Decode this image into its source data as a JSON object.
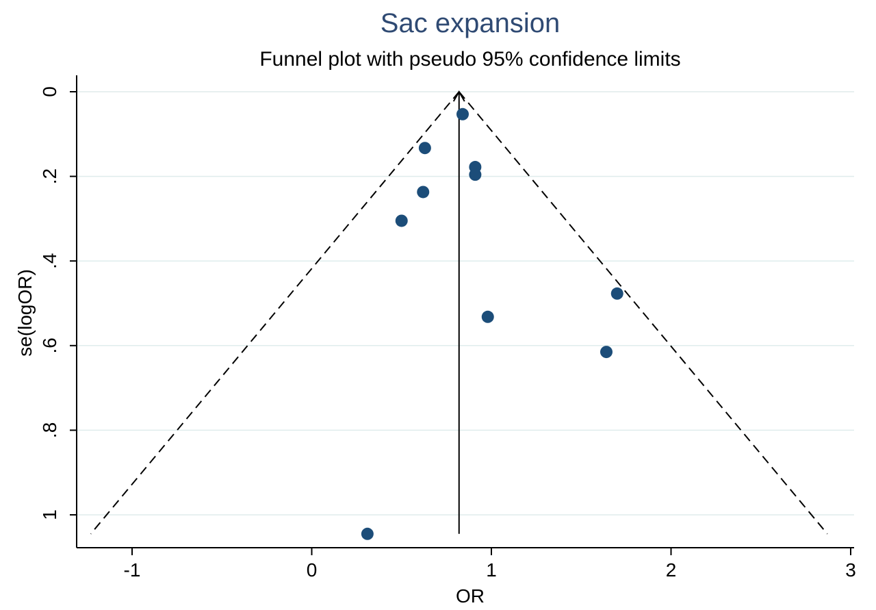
{
  "chart_data": {
    "type": "scatter",
    "title": "Sac expansion",
    "subtitle": "Funnel plot with pseudo 95% confidence limits",
    "xlabel": "OR",
    "ylabel": "se(logOR)",
    "xlim": [
      -1.3,
      3.0
    ],
    "ylim": [
      0,
      1.08
    ],
    "y_reversed": true,
    "x_ticks": [
      -1,
      0,
      1,
      2,
      3
    ],
    "x_tick_labels": [
      "-1",
      "0",
      "1",
      "2",
      "3"
    ],
    "y_ticks": [
      0,
      0.2,
      0.4,
      0.6,
      0.8,
      1
    ],
    "y_tick_labels": [
      "0",
      ".2",
      ".4",
      ".6",
      ".8",
      "1"
    ],
    "grid": "horizontal",
    "colors": {
      "title": "#2f4a73",
      "point": "#1c4d79",
      "grid": "#dfecec",
      "axis": "#000000"
    },
    "pooled_estimate": 0.82,
    "funnel_limits": {
      "apex": [
        0.82,
        0.0
      ],
      "left_base": [
        -1.23,
        1.045
      ],
      "right_base": [
        2.87,
        1.045
      ]
    },
    "points": [
      {
        "x": 0.84,
        "y": 0.053
      },
      {
        "x": 0.63,
        "y": 0.133
      },
      {
        "x": 0.91,
        "y": 0.178
      },
      {
        "x": 0.91,
        "y": 0.196
      },
      {
        "x": 0.62,
        "y": 0.237
      },
      {
        "x": 0.5,
        "y": 0.305
      },
      {
        "x": 1.7,
        "y": 0.477
      },
      {
        "x": 0.98,
        "y": 0.532
      },
      {
        "x": 1.64,
        "y": 0.615
      },
      {
        "x": 0.31,
        "y": 1.045
      }
    ]
  }
}
